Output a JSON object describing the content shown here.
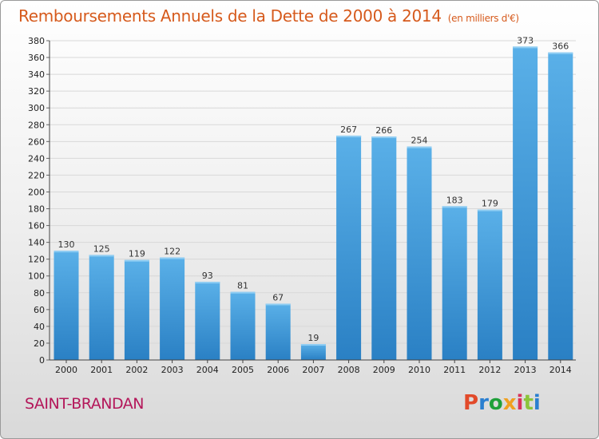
{
  "header": {
    "title": "Remboursements Annuels de la Dette de 2000 à 2014",
    "unit": "(en milliers d'€)"
  },
  "footer": {
    "commune": "SAINT-BRANDAN",
    "logo_text": "Proxiti"
  },
  "colors": {
    "title": "#d65a1c",
    "commune": "#b4175a",
    "bar_top": "#5ab0e8",
    "bar_bottom": "#2a80c4",
    "logo_letters": [
      "#e24a2a",
      "#2a7fd0",
      "#1fa03a",
      "#f0a020",
      "#d8325a",
      "#8bc43a",
      "#2a7fd0"
    ]
  },
  "chart_data": {
    "type": "bar",
    "title": "Remboursements Annuels de la Dette de 2000 à 2014",
    "ylabel": "",
    "xlabel": "",
    "categories": [
      "2000",
      "2001",
      "2002",
      "2003",
      "2004",
      "2005",
      "2006",
      "2007",
      "2008",
      "2009",
      "2010",
      "2011",
      "2012",
      "2013",
      "2014"
    ],
    "values": [
      130,
      125,
      119,
      122,
      93,
      81,
      67,
      19,
      267,
      266,
      254,
      183,
      179,
      373,
      366
    ],
    "ylim": [
      0,
      380
    ],
    "yticks": [
      0,
      20,
      40,
      60,
      80,
      100,
      120,
      140,
      160,
      180,
      200,
      220,
      240,
      260,
      280,
      300,
      320,
      340,
      360,
      380
    ],
    "grid": true,
    "legend": "none"
  }
}
